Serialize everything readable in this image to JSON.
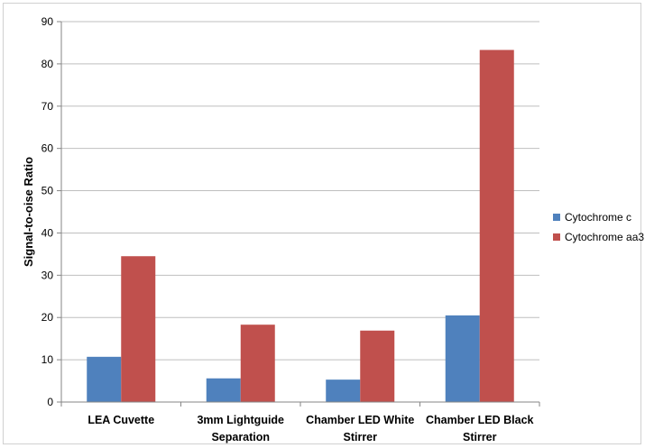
{
  "chart_data": {
    "type": "bar",
    "title": "",
    "xlabel": "",
    "ylabel": "Signal-to-oise Ratio",
    "ylim": [
      0,
      90
    ],
    "yticks": [
      0,
      10,
      20,
      30,
      40,
      50,
      60,
      70,
      80,
      90
    ],
    "grid": true,
    "legend_position": "right",
    "categories": [
      [
        "LEA Cuvette"
      ],
      [
        "3mm Lightguide",
        "Separation"
      ],
      [
        "Chamber LED White",
        "Stirrer"
      ],
      [
        "Chamber LED Black",
        "Stirrer"
      ]
    ],
    "series": [
      {
        "name": "Cytochrome c",
        "color": "#4f81bd",
        "values": [
          10.7,
          5.6,
          5.3,
          20.5
        ]
      },
      {
        "name": "Cytochrome aa3",
        "color": "#c0504d",
        "values": [
          34.5,
          18.3,
          16.9,
          83.3
        ]
      }
    ]
  }
}
